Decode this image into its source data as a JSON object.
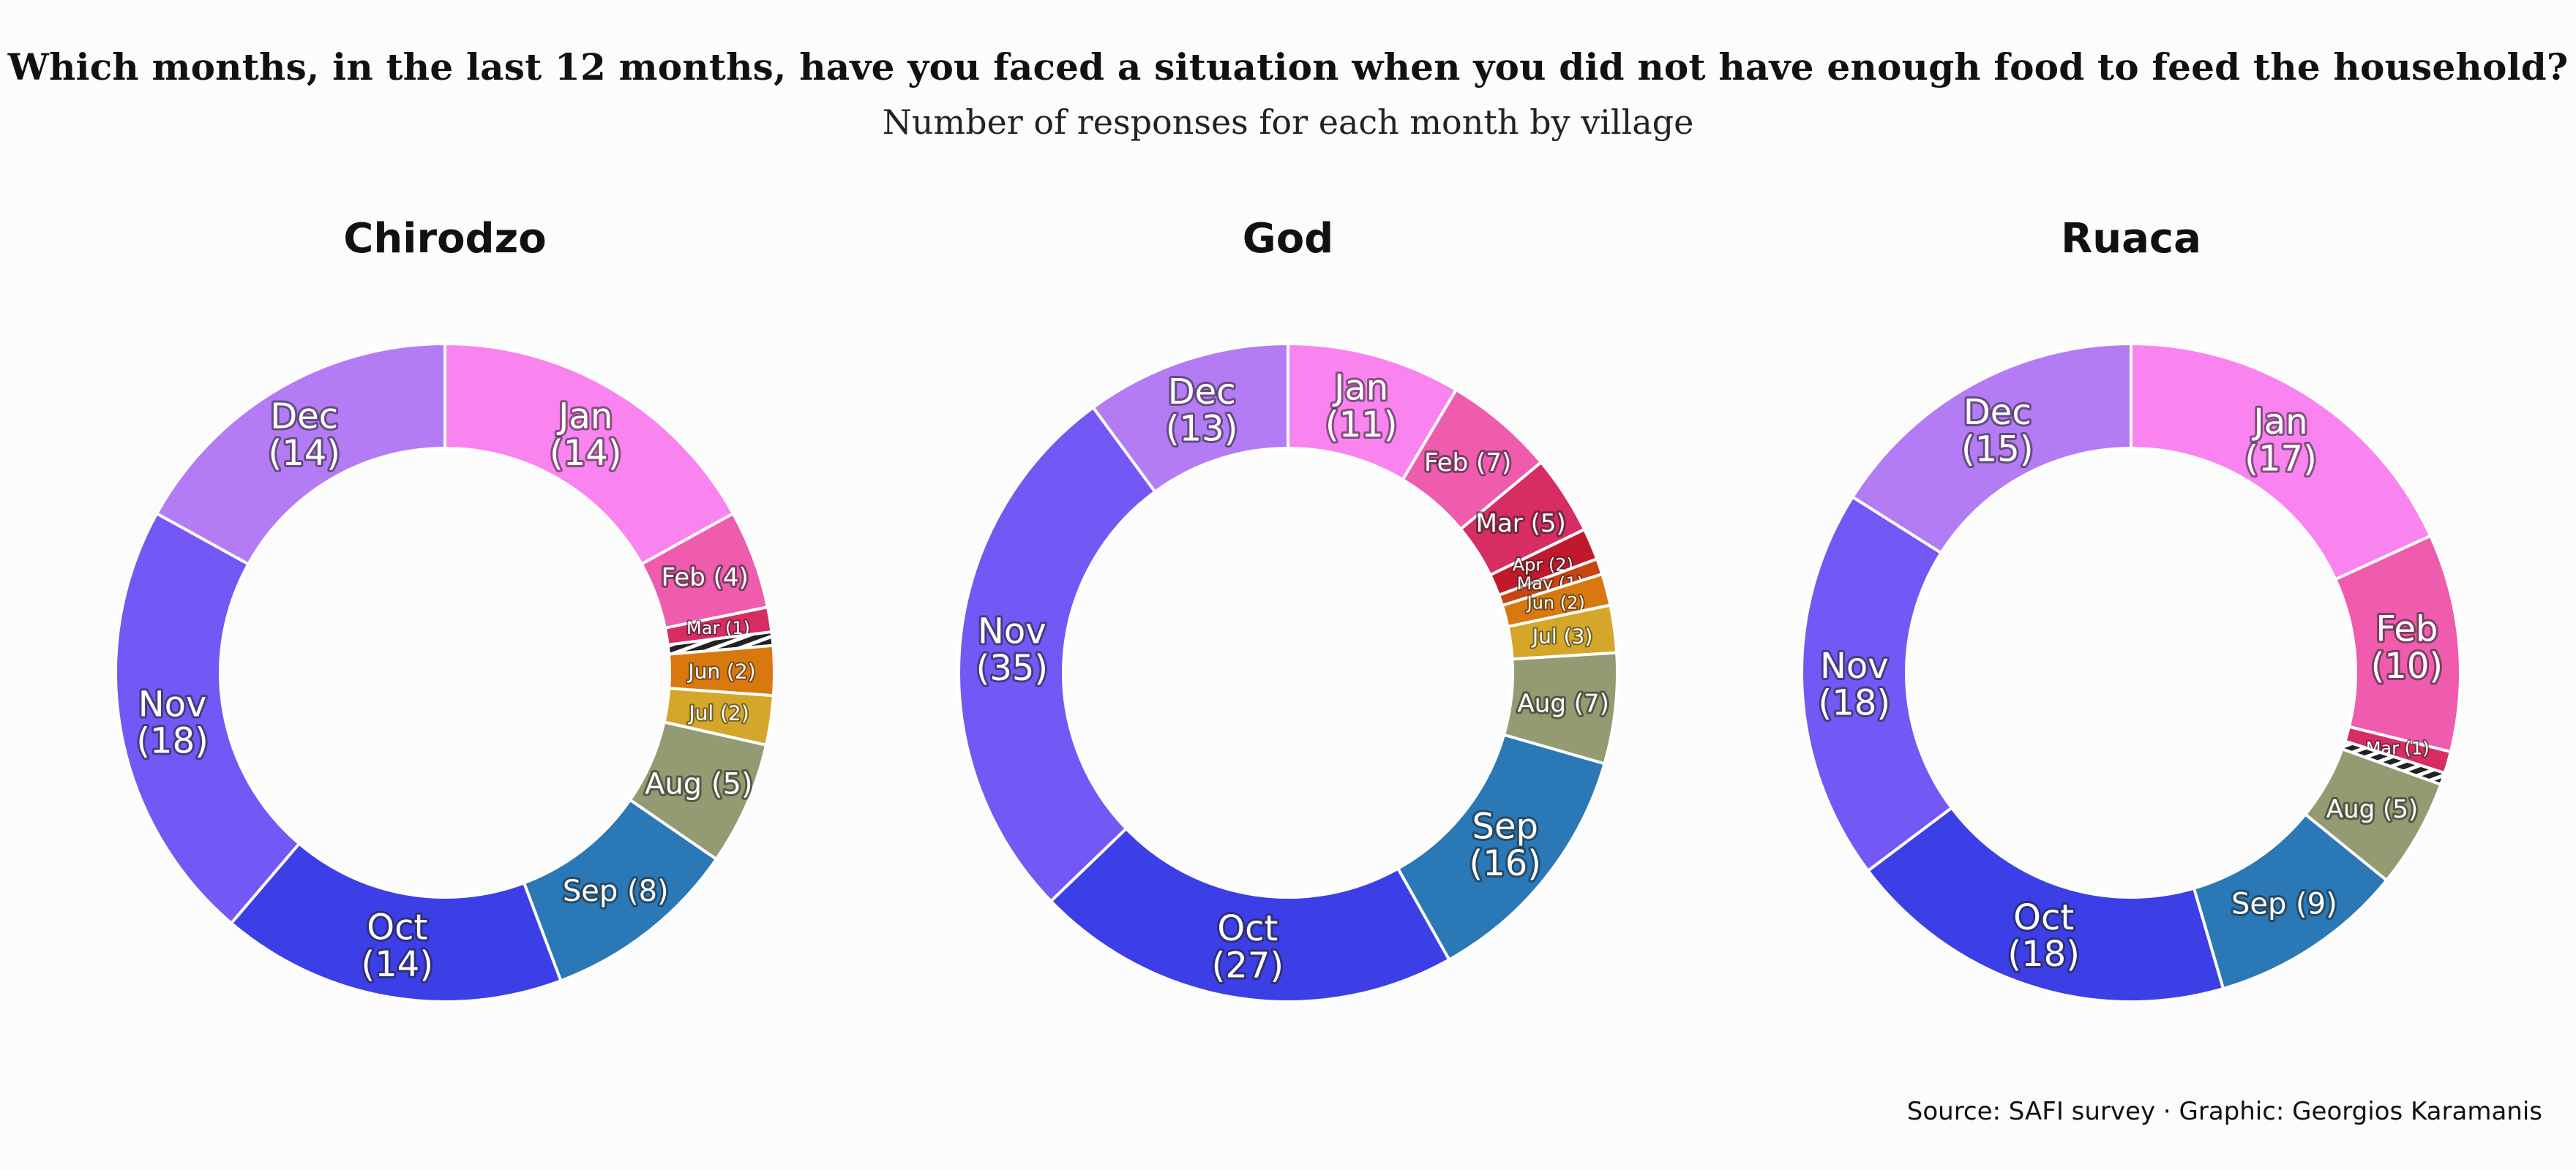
{
  "title": "Which months, in the last 12 months, have you faced a situation when you did not have enough food to feed the household?",
  "subtitle": "Number of responses for each month by village",
  "caption": "Source: SAFI survey · Graphic: Georgios Karamanis",
  "colors": {
    "Jan": "#f984f0",
    "Feb": "#f05cad",
    "Mar": "#d72d63",
    "Apr": "#c0192c",
    "May": "#c84413",
    "Jun": "#d9780f",
    "Jul": "#d4a62a",
    "Aug": "#949a72",
    "Sep": "#2a78b5",
    "Oct": "#3c3fe6",
    "Nov": "#7458f5",
    "Dec": "#b37cf4",
    "hatch": "#ffffff",
    "stroke": "#ffffff"
  },
  "chart_data": [
    {
      "type": "pie",
      "title": "Chirodzo",
      "categories": [
        "Jan",
        "Feb",
        "Mar",
        "Apr",
        "May",
        "Jun",
        "Jul",
        "Aug",
        "Sep",
        "Oct",
        "Nov",
        "Dec"
      ],
      "values": [
        14,
        4,
        1,
        0,
        0,
        2,
        2,
        5,
        8,
        14,
        18,
        14
      ],
      "labels": [
        "Jan\n(14)",
        "Feb (4)",
        "Mar (1)",
        "",
        "",
        "Jun (2)",
        "Jul (2)",
        "Aug (5)",
        "Sep (8)",
        "Oct\n(14)",
        "Nov\n(18)",
        "Dec\n(14)"
      ]
    },
    {
      "type": "pie",
      "title": "God",
      "categories": [
        "Jan",
        "Feb",
        "Mar",
        "Apr",
        "May",
        "Jun",
        "Jul",
        "Aug",
        "Sep",
        "Oct",
        "Nov",
        "Dec"
      ],
      "values": [
        11,
        7,
        5,
        2,
        1,
        2,
        3,
        7,
        16,
        27,
        35,
        13
      ],
      "labels": [
        "Jan\n(11)",
        "Feb (7)",
        "Mar (5)",
        "Apr (2)",
        "May (1)",
        "Jun (2)",
        "Jul (3)",
        "Aug (7)",
        "Sep\n(16)",
        "Oct\n(27)",
        "Nov\n(35)",
        "Dec\n(13)"
      ]
    },
    {
      "type": "pie",
      "title": "Ruaca",
      "categories": [
        "Jan",
        "Feb",
        "Mar",
        "Apr",
        "May",
        "Jun",
        "Jul",
        "Aug",
        "Sep",
        "Oct",
        "Nov",
        "Dec"
      ],
      "values": [
        17,
        10,
        1,
        0,
        0,
        0,
        0,
        5,
        9,
        18,
        18,
        15
      ],
      "labels": [
        "Jan\n(17)",
        "Feb\n(10)",
        "Mar (1)",
        "",
        "",
        "",
        "",
        "Aug (5)",
        "Sep (9)",
        "Oct\n(18)",
        "Nov\n(18)",
        "Dec\n(15)"
      ]
    }
  ]
}
